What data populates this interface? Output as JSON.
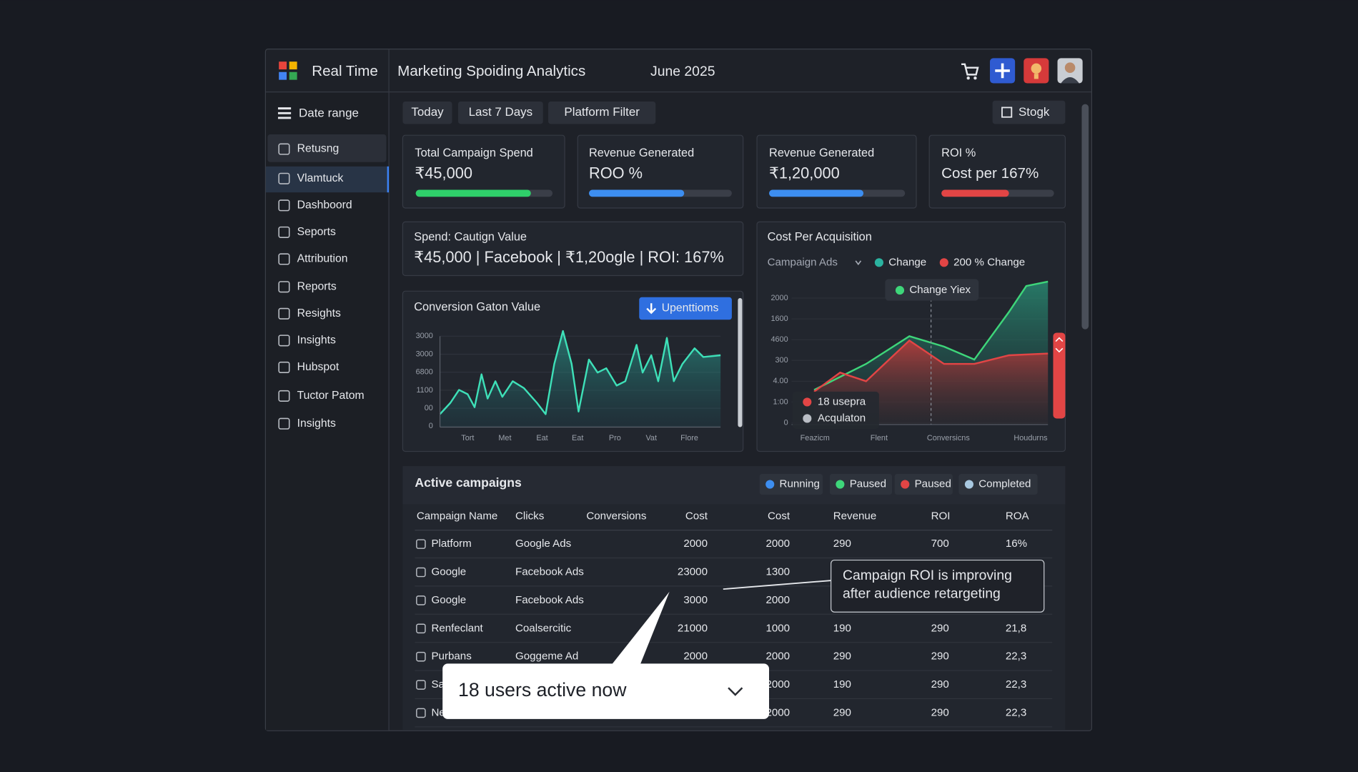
{
  "header": {
    "brand": "Real Time",
    "title": "Marketing Spoiding Analytics",
    "date": "June 2025"
  },
  "sidebar": {
    "heading": "Date range",
    "items": [
      "Retusng",
      "Vlamtuck",
      "Dashboord",
      "Seports",
      "Attribution",
      "Reports",
      "Resights",
      "Insights",
      "Hubspot",
      "Tuctor Patom",
      "Insights"
    ]
  },
  "filters": [
    "Today",
    "Last 7 Days",
    "Platform Filter"
  ],
  "action_button": "Stogk",
  "kpis": [
    {
      "label": "Total Campaign Spend",
      "value": "₹45,000"
    },
    {
      "label": "Revenue Generated",
      "value": "ROO %"
    },
    {
      "label": "Revenue Generated",
      "value": "₹1,20,000"
    },
    {
      "label": "ROI %",
      "value": "Cost per 167%"
    }
  ],
  "summary": {
    "label": "Spend: Cautign Value",
    "value": "₹45,000 | Facebook | ₹1,20ogle | ROI: 167%"
  },
  "conversion_panel": {
    "title": "Conversion Gaton Value",
    "button": "Upenttioms",
    "y_labels": [
      "3000",
      "3000",
      "6800",
      "1100",
      "00",
      "0"
    ],
    "x_labels": [
      "Tort",
      "Met",
      "Eat",
      "Eat",
      "Pro",
      "Vat",
      "Flore"
    ]
  },
  "cpa_panel": {
    "title": "Cost Per Acquisition",
    "filter": "Campaign Ads",
    "legend": [
      "Change",
      "200 % Change"
    ],
    "tooltip": "Change Yiex",
    "y_labels": [
      "2000",
      "1600",
      "4600",
      "300",
      "4.00",
      "1:00",
      "0"
    ],
    "x_labels": [
      "Feazicm",
      "Flent",
      "Conversicns",
      "Houdurns"
    ],
    "series_legend": [
      "18 usepra",
      "Acqulaton"
    ]
  },
  "campaigns": {
    "title": "Active campaigns",
    "statuses": [
      "Running",
      "Paused",
      "Paused",
      "Completed"
    ],
    "columns": [
      "Campaign Name",
      "Clicks",
      "Conversions",
      "Cost",
      "Cost",
      "Revenue",
      "ROI",
      "ROA"
    ],
    "rows": [
      [
        "Platform",
        "Google Ads",
        null,
        2000,
        2000,
        290,
        700,
        "16%"
      ],
      [
        "Google",
        "Facebook Ads",
        null,
        23000,
        1300,
        null,
        null,
        null
      ],
      [
        "Google",
        "Facebook Ads",
        null,
        3000,
        2000,
        null,
        null,
        null
      ],
      [
        "Renfeclant",
        "Coalsercitic",
        null,
        21000,
        1000,
        190,
        290,
        "21,8"
      ],
      [
        "Purbans",
        "Goggeme Ad",
        null,
        2000,
        2000,
        290,
        290,
        "22,3"
      ],
      [
        "Sa",
        null,
        null,
        null,
        2000,
        190,
        290,
        "22,3"
      ],
      [
        "Ne",
        null,
        null,
        null,
        2000,
        290,
        290,
        "22,3"
      ]
    ]
  },
  "annotation": [
    "Campaign ROI is improving",
    "after audience retargeting"
  ],
  "popup": "18 users active now"
}
